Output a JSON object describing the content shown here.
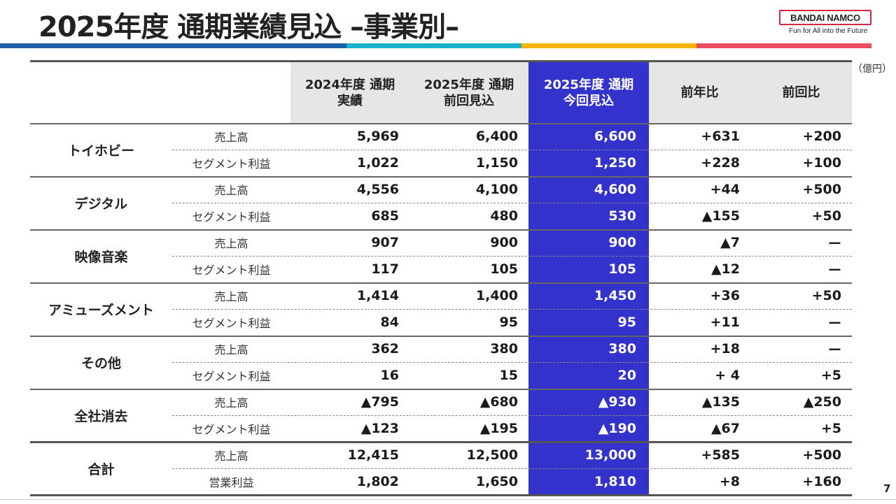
{
  "title": "2025年度 通期業績見込 –事業別–",
  "logo": {
    "brand": "BANDAI NAMCO",
    "tagline": "Fun for All into the Future"
  },
  "unit": "（億円）",
  "colors": {
    "highlight": "#3333cc",
    "bar": [
      "#1f5fa8",
      "#19b3c9",
      "#f4b400",
      "#ea4c5f"
    ]
  },
  "headers": {
    "fy2024_actual": "2024年度 通期\n実績",
    "fy2025_prev": "2025年度 通期\n前回見込",
    "fy2025_curr": "2025年度 通期\n今回見込",
    "yoy": "前年比",
    "vs_prev": "前回比"
  },
  "segments": [
    {
      "name": "トイホビー",
      "rows": [
        {
          "item": "売上高",
          "values": [
            "5,969",
            "6,400",
            "6,600",
            "+631",
            "+200"
          ]
        },
        {
          "item": "セグメント利益",
          "values": [
            "1,022",
            "1,150",
            "1,250",
            "+228",
            "+100"
          ]
        }
      ]
    },
    {
      "name": "デジタル",
      "rows": [
        {
          "item": "売上高",
          "values": [
            "4,556",
            "4,100",
            "4,600",
            "+44",
            "+500"
          ]
        },
        {
          "item": "セグメント利益",
          "values": [
            "685",
            "480",
            "530",
            "▲155",
            "+50"
          ]
        }
      ]
    },
    {
      "name": "映像音楽",
      "rows": [
        {
          "item": "売上高",
          "values": [
            "907",
            "900",
            "900",
            "▲7",
            "ー"
          ]
        },
        {
          "item": "セグメント利益",
          "values": [
            "117",
            "105",
            "105",
            "▲12",
            "ー"
          ]
        }
      ]
    },
    {
      "name": "アミューズメント",
      "rows": [
        {
          "item": "売上高",
          "values": [
            "1,414",
            "1,400",
            "1,450",
            "+36",
            "+50"
          ]
        },
        {
          "item": "セグメント利益",
          "values": [
            "84",
            "95",
            "95",
            "+11",
            "ー"
          ]
        }
      ]
    },
    {
      "name": "その他",
      "rows": [
        {
          "item": "売上高",
          "values": [
            "362",
            "380",
            "380",
            "+18",
            "ー"
          ]
        },
        {
          "item": "セグメント利益",
          "values": [
            "16",
            "15",
            "20",
            "+ 4",
            "+5"
          ]
        }
      ]
    },
    {
      "name": "全社消去",
      "rows": [
        {
          "item": "売上高",
          "values": [
            "▲795",
            "▲680",
            "▲930",
            "▲135",
            "▲250"
          ]
        },
        {
          "item": "セグメント利益",
          "values": [
            "▲123",
            "▲195",
            "▲190",
            "▲67",
            "+5"
          ]
        }
      ]
    },
    {
      "name": "合計",
      "rows": [
        {
          "item": "売上高",
          "values": [
            "12,415",
            "12,500",
            "13,000",
            "+585",
            "+500"
          ]
        },
        {
          "item": "営業利益",
          "values": [
            "1,802",
            "1,650",
            "1,810",
            "+8",
            "+160"
          ]
        }
      ]
    }
  ],
  "page_number": "7"
}
